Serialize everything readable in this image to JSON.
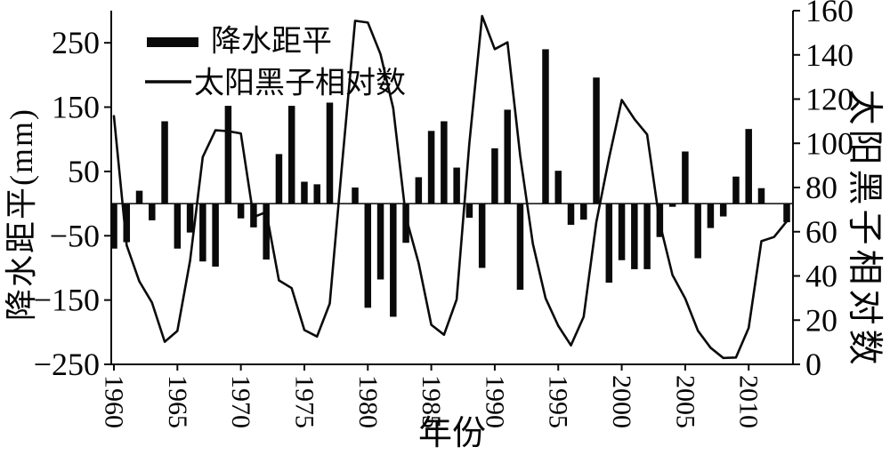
{
  "figure": {
    "background": "#ffffff",
    "ink_color": "#0a0a0a"
  },
  "chart_data": {
    "type": "combo_bar_line",
    "x": [
      1960,
      1961,
      1962,
      1963,
      1964,
      1965,
      1966,
      1967,
      1968,
      1969,
      1970,
      1971,
      1972,
      1973,
      1974,
      1975,
      1976,
      1977,
      1978,
      1979,
      1980,
      1981,
      1982,
      1983,
      1984,
      1985,
      1986,
      1987,
      1988,
      1989,
      1990,
      1991,
      1992,
      1993,
      1994,
      1995,
      1996,
      1997,
      1998,
      1999,
      2000,
      2001,
      2002,
      2003,
      2004,
      2005,
      2006,
      2007,
      2008,
      2009,
      2010,
      2011,
      2012,
      2013
    ],
    "series": [
      {
        "name": "降水距平",
        "type": "bar",
        "axis": "left",
        "color": "#0a0a0a",
        "values": [
          -70,
          -60,
          20,
          -26,
          128,
          -70,
          -45,
          -90,
          -98,
          152,
          -23,
          -37,
          -87,
          77,
          152,
          34,
          30,
          157,
          0,
          25,
          -162,
          -118,
          -176,
          -61,
          41,
          113,
          128,
          56,
          -22,
          -100,
          86,
          146,
          -134,
          0,
          240,
          51,
          -33,
          -25,
          196,
          -123,
          -88,
          -102,
          -102,
          -52,
          -5,
          81,
          -85,
          -38,
          -20,
          42,
          116,
          24,
          0,
          -29
        ]
      },
      {
        "name": "太阳黑子相对数",
        "type": "line",
        "axis": "right",
        "color": "#0a0a0a",
        "values": [
          112.3,
          53.9,
          37.6,
          27.9,
          10.2,
          15.1,
          47.0,
          93.8,
          105.9,
          105.5,
          104.5,
          66.6,
          68.9,
          38.0,
          34.5,
          15.5,
          12.6,
          27.5,
          92.5,
          155.4,
          154.6,
          140.4,
          115.9,
          66.6,
          45.9,
          17.9,
          13.4,
          29.4,
          100.2,
          157.6,
          142.6,
          145.7,
          94.3,
          54.6,
          29.9,
          17.5,
          8.6,
          21.5,
          64.3,
          93.3,
          119.6,
          111.0,
          104.0,
          63.7,
          40.4,
          29.8,
          15.2,
          7.5,
          2.9,
          3.1,
          16.5,
          55.7,
          57.6,
          64.7
        ]
      }
    ],
    "left_axis": {
      "title": "降水距平(mm)",
      "ticks": [
        250,
        150,
        50,
        -50,
        -150,
        -250
      ],
      "range": [
        -250,
        300
      ],
      "unit": "mm"
    },
    "right_axis": {
      "title": "太阳黑子相对数",
      "ticks": [
        0,
        20,
        40,
        60,
        80,
        100,
        120,
        140,
        160
      ],
      "range": [
        0,
        160
      ]
    },
    "x_axis": {
      "title": "年份",
      "tick_labels": [
        1960,
        1965,
        1970,
        1975,
        1980,
        1985,
        1990,
        1995,
        2000,
        2005,
        2010
      ]
    },
    "legend": {
      "position": "top-left",
      "entries": [
        "降水距平",
        "太阳黑子相对数"
      ]
    },
    "grid": false,
    "zero_line": true
  }
}
